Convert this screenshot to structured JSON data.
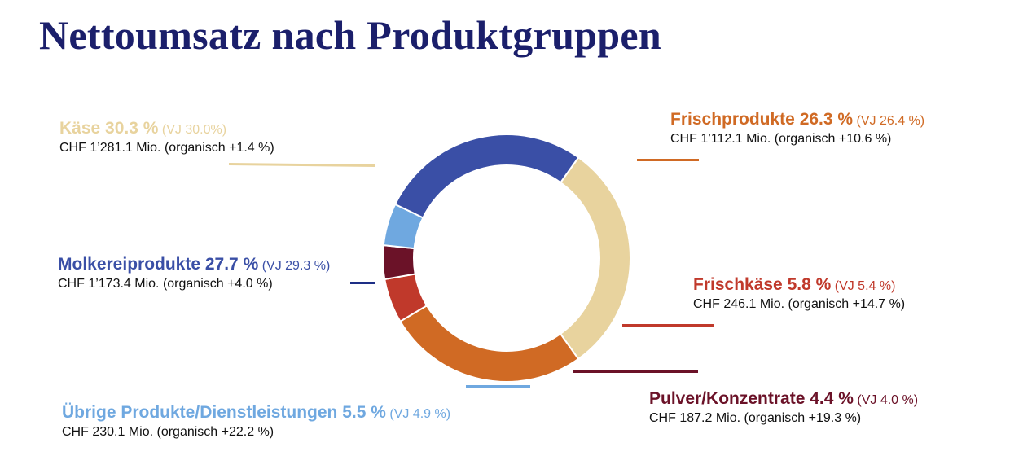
{
  "title": "Nettoumsatz nach Produktgruppen",
  "chart_data": {
    "type": "pie",
    "donut": true,
    "title": "Nettoumsatz nach Produktgruppen",
    "segments": [
      {
        "key": "kaese",
        "label": "Käse 30.3 %",
        "value": 30.3,
        "previous_year": "(VJ 30.0%)",
        "detail": "CHF 1’281.1 Mio. (organisch +1.4 %)",
        "color": "#e8d39e"
      },
      {
        "key": "frischprodukte",
        "label": "Frischprodukte 26.3 %",
        "value": 26.3,
        "previous_year": "(VJ 26.4 %)",
        "detail": "CHF 1’112.1 Mio. (organisch +10.6 %)",
        "color": "#d06a24"
      },
      {
        "key": "frischkaese",
        "label": "Frischkäse 5.8 %",
        "value": 5.8,
        "previous_year": "(VJ 5.4 %)",
        "detail": "CHF 246.1 Mio. (organisch +14.7 %)",
        "color": "#c0392b"
      },
      {
        "key": "pulver",
        "label": "Pulver/Konzentrate 4.4 %",
        "value": 4.4,
        "previous_year": "(VJ 4.0 %)",
        "detail": "CHF 187.2 Mio. (organisch +19.3 %)",
        "color": "#6b1228"
      },
      {
        "key": "uebrige",
        "label": "Übrige Produkte/Dienstleistungen 5.5 %",
        "value": 5.5,
        "previous_year": "(VJ 4.9 %)",
        "detail": "CHF 230.1 Mio. (organisch +22.2 %)",
        "color": "#6fa8e0"
      },
      {
        "key": "molkerei",
        "label": "Molkereiprodukte 27.7 %",
        "value": 27.7,
        "previous_year": "(VJ 29.3 %)",
        "detail": "CHF 1’173.4 Mio. (organisch +4.0 %)",
        "color": "#3a4fa6"
      }
    ]
  },
  "labels": {
    "kaese": {
      "name": "Käse 30.3 %",
      "vj": "(VJ 30.0%)",
      "detail": "CHF 1’281.1 Mio. (organisch +1.4 %)"
    },
    "frischprodukte": {
      "name": "Frischprodukte 26.3 %",
      "vj": "(VJ 26.4 %)",
      "detail": "CHF 1’112.1 Mio. (organisch +10.6 %)"
    },
    "frischkaese": {
      "name": "Frischkäse 5.8 %",
      "vj": "(VJ 5.4 %)",
      "detail": "CHF 246.1 Mio. (organisch +14.7 %)"
    },
    "pulver": {
      "name": "Pulver/Konzentrate 4.4 %",
      "vj": "(VJ 4.0 %)",
      "detail": "CHF 187.2 Mio. (organisch +19.3 %)"
    },
    "uebrige": {
      "name": "Übrige Produkte/Dienstleistungen 5.5 %",
      "vj": "(VJ 4.9 %)",
      "detail": "CHF 230.1 Mio. (organisch +22.2 %)"
    },
    "molkerei": {
      "name": "Molkereiprodukte 27.7 %",
      "vj": "(VJ 29.3 %)",
      "detail": "CHF 1’173.4 Mio. (organisch +4.0 %)"
    }
  }
}
